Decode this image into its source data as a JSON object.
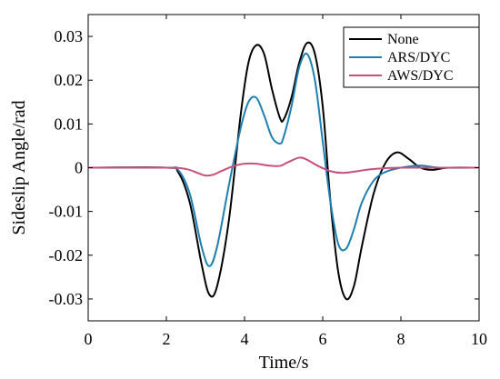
{
  "chart_data": {
    "type": "line",
    "title": "",
    "xlabel": "Time/s",
    "ylabel": "Sideslip Angle/rad",
    "xlim": [
      0,
      10
    ],
    "ylim": [
      -0.035,
      0.035
    ],
    "xticks": [
      0,
      2,
      4,
      6,
      8,
      10
    ],
    "xtick_labels": [
      "0",
      "2",
      "4",
      "6",
      "8",
      "10"
    ],
    "yticks": [
      -0.03,
      -0.02,
      -0.01,
      0,
      0.01,
      0.02,
      0.03
    ],
    "ytick_labels": [
      "-0.03",
      "-0.02",
      "-0.01",
      "0",
      "0.01",
      "0.02",
      "0.03"
    ],
    "grid": false,
    "legend_position": "top-right",
    "series": [
      {
        "name": "None",
        "color": "#000000",
        "x": [
          0,
          2.0,
          2.3,
          2.6,
          2.9,
          3.1,
          3.3,
          3.6,
          3.9,
          4.1,
          4.3,
          4.5,
          4.7,
          4.9,
          5.0,
          5.2,
          5.4,
          5.6,
          5.8,
          6.0,
          6.2,
          6.4,
          6.6,
          6.8,
          7.0,
          7.3,
          7.6,
          7.9,
          8.2,
          8.5,
          8.8,
          9.2,
          10.0
        ],
        "y": [
          0,
          0,
          -0.001,
          -0.008,
          -0.022,
          -0.029,
          -0.027,
          -0.012,
          0.012,
          0.024,
          0.028,
          0.026,
          0.018,
          0.0115,
          0.011,
          0.016,
          0.024,
          0.0285,
          0.026,
          0.014,
          -0.008,
          -0.024,
          -0.03,
          -0.027,
          -0.018,
          -0.006,
          0.001,
          0.0035,
          0.002,
          0.0,
          -0.0005,
          0.0,
          0.0
        ]
      },
      {
        "name": "ARS/DYC",
        "color": "#1f7fb0",
        "x": [
          0,
          2.0,
          2.3,
          2.6,
          2.9,
          3.1,
          3.3,
          3.6,
          3.9,
          4.1,
          4.3,
          4.5,
          4.7,
          4.9,
          5.0,
          5.2,
          5.4,
          5.6,
          5.8,
          6.0,
          6.2,
          6.4,
          6.6,
          6.8,
          7.0,
          7.3,
          7.6,
          8.0,
          8.5,
          9.0,
          10.0
        ],
        "y": [
          0,
          0,
          -0.0005,
          -0.006,
          -0.018,
          -0.0225,
          -0.018,
          -0.004,
          0.009,
          0.015,
          0.016,
          0.012,
          0.007,
          0.0055,
          0.007,
          0.014,
          0.023,
          0.026,
          0.02,
          0.006,
          -0.008,
          -0.0175,
          -0.0185,
          -0.014,
          -0.008,
          -0.003,
          -0.001,
          0.0,
          0.0005,
          0.0,
          0.0
        ]
      },
      {
        "name": "AWS/DYC",
        "color": "#c8507a",
        "x": [
          0,
          2.0,
          2.5,
          2.8,
          3.0,
          3.2,
          3.4,
          3.7,
          4.0,
          4.3,
          4.6,
          4.9,
          5.1,
          5.4,
          5.6,
          5.9,
          6.2,
          6.5,
          6.8,
          7.2,
          7.6,
          8.0,
          8.5,
          9.0,
          10.0
        ],
        "y": [
          0,
          0,
          -0.0003,
          -0.0012,
          -0.0018,
          -0.0016,
          -0.0008,
          0.0003,
          0.0009,
          0.0009,
          0.0005,
          0.0004,
          0.0012,
          0.0023,
          0.0018,
          0.0003,
          -0.0008,
          -0.0012,
          -0.0009,
          -0.0004,
          -0.0001,
          0.0,
          0.0,
          0.0,
          0.0
        ]
      }
    ]
  }
}
